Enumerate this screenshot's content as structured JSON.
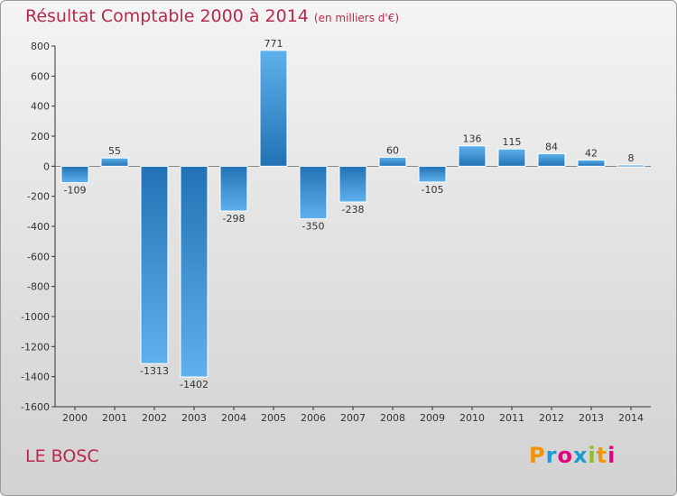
{
  "header": {
    "title": "Résultat Comptable 2000 à 2014",
    "unit": "(en milliers d'€)"
  },
  "footer": {
    "commune": "LE BOSC",
    "logo_text": "Proxiti"
  },
  "colors": {
    "title": "#b8284a",
    "bar_light": "#5eb1ec",
    "bar_dark": "#2272b5",
    "axis": "#333333"
  },
  "chart_data": {
    "type": "bar",
    "title": "Résultat Comptable 2000 à 2014",
    "categories": [
      "2000",
      "2001",
      "2002",
      "2003",
      "2004",
      "2005",
      "2006",
      "2007",
      "2008",
      "2009",
      "2010",
      "2011",
      "2012",
      "2013",
      "2014"
    ],
    "values": [
      -109,
      55,
      -1313,
      -1402,
      -298,
      771,
      -350,
      -238,
      60,
      -105,
      136,
      115,
      84,
      42,
      8
    ],
    "data_labels": [
      "-109",
      "55",
      "-1313",
      "-1402",
      "-298",
      "771",
      "-350",
      "-238",
      "60",
      "-105",
      "136",
      "115",
      "84",
      "42",
      "8"
    ],
    "ylim": [
      -1600,
      800
    ],
    "yticks": [
      800,
      600,
      400,
      200,
      0,
      -200,
      -400,
      -600,
      -800,
      -1000,
      -1200,
      -1400,
      -1600
    ],
    "ytick_labels": [
      "800",
      "600",
      "400",
      "200",
      "0",
      "-200",
      "-400",
      "-600",
      "-800",
      "-1000",
      "-1200",
      "-1400",
      "-1600"
    ],
    "xlabel": "",
    "ylabel": "",
    "grid": false,
    "legend": "none"
  }
}
